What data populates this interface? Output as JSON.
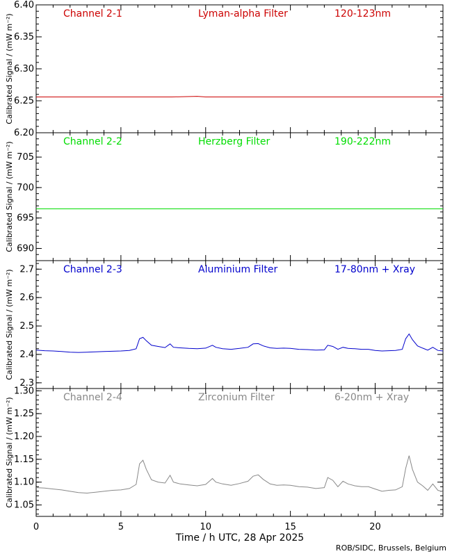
{
  "xlabel": "Time / h UTC, 28 Apr 2025",
  "credit": "ROB/SIDC, Brussels, Belgium",
  "chart_data": [
    {
      "type": "line",
      "color": "#cc0000",
      "title_left": "Channel 2-1",
      "title_mid": "Lyman-alpha Filter",
      "title_right": "120-123nm",
      "ylabel": "Calibrated Signal / (mW m⁻²)",
      "ylim": [
        6.2,
        6.4
      ],
      "yticks": [
        "6.20",
        "6.25",
        "6.30",
        "6.35",
        "6.40"
      ],
      "yticks_v": [
        6.2,
        6.25,
        6.3,
        6.35,
        6.4
      ],
      "xlim": [
        0,
        24
      ],
      "x": [
        0,
        2,
        4,
        6,
        8,
        9.5,
        10,
        12,
        14,
        16,
        18,
        20,
        22,
        24
      ],
      "values": [
        6.256,
        6.256,
        6.256,
        6.256,
        6.256,
        6.257,
        6.256,
        6.256,
        6.256,
        6.256,
        6.256,
        6.256,
        6.256,
        6.256
      ]
    },
    {
      "type": "line",
      "color": "#00dd00",
      "title_left": "Channel 2-2",
      "title_mid": "Herzberg Filter",
      "title_right": "190-222nm",
      "ylabel": "Calibrated Signal / (mW m⁻²)",
      "ylim": [
        688,
        709
      ],
      "yticks": [
        "690",
        "695",
        "700",
        "705"
      ],
      "yticks_v": [
        690,
        695,
        700,
        705
      ],
      "xlim": [
        0,
        24
      ],
      "x": [
        0,
        4,
        8,
        12,
        16,
        20,
        24
      ],
      "values": [
        696.5,
        696.5,
        696.5,
        696.5,
        696.5,
        696.5,
        696.5
      ]
    },
    {
      "type": "line",
      "color": "#0000cc",
      "title_left": "Channel 2-3",
      "title_mid": "Aluminium Filter",
      "title_right": "17-80nm + Xray",
      "ylabel": "Calibrated Signal / (mW m⁻²)",
      "ylim": [
        2.28,
        2.73
      ],
      "yticks": [
        "2.3",
        "2.4",
        "2.5",
        "2.6",
        "2.7"
      ],
      "yticks_v": [
        2.3,
        2.4,
        2.5,
        2.6,
        2.7
      ],
      "xlim": [
        0,
        24
      ],
      "x": [
        0,
        0.5,
        1,
        1.5,
        2,
        2.5,
        3,
        3.5,
        4,
        4.5,
        5,
        5.5,
        5.9,
        6.1,
        6.3,
        6.5,
        6.8,
        7.2,
        7.6,
        7.9,
        8.1,
        8.5,
        9,
        9.5,
        10,
        10.4,
        10.6,
        11,
        11.5,
        12,
        12.5,
        12.8,
        13.1,
        13.4,
        13.8,
        14.2,
        14.6,
        15,
        15.5,
        16,
        16.5,
        17,
        17.2,
        17.5,
        17.8,
        18.1,
        18.4,
        18.8,
        19.2,
        19.6,
        20,
        20.4,
        20.8,
        21.2,
        21.6,
        21.8,
        22,
        22.2,
        22.5,
        22.8,
        23.1,
        23.4,
        23.7,
        24
      ],
      "values": [
        2.415,
        2.413,
        2.412,
        2.41,
        2.408,
        2.407,
        2.408,
        2.409,
        2.41,
        2.411,
        2.412,
        2.414,
        2.42,
        2.455,
        2.46,
        2.448,
        2.432,
        2.428,
        2.424,
        2.437,
        2.425,
        2.423,
        2.421,
        2.42,
        2.422,
        2.432,
        2.425,
        2.42,
        2.418,
        2.421,
        2.425,
        2.437,
        2.438,
        2.43,
        2.423,
        2.421,
        2.422,
        2.421,
        2.418,
        2.417,
        2.415,
        2.416,
        2.432,
        2.428,
        2.418,
        2.425,
        2.421,
        2.42,
        2.418,
        2.418,
        2.414,
        2.412,
        2.413,
        2.414,
        2.418,
        2.455,
        2.472,
        2.452,
        2.43,
        2.422,
        2.415,
        2.425,
        2.414,
        2.412
      ]
    },
    {
      "type": "line",
      "color": "#888888",
      "title_left": "Channel 2-4",
      "title_mid": "Zirconium Filter",
      "title_right": "6-20nm + Xray",
      "ylabel": "Calibrated Signal / (mW m⁻²)",
      "ylim": [
        1.025,
        1.305
      ],
      "yticks": [
        "1.05",
        "1.10",
        "1.15",
        "1.20",
        "1.25",
        "1.30"
      ],
      "yticks_v": [
        1.05,
        1.1,
        1.15,
        1.2,
        1.25,
        1.3
      ],
      "xlim": [
        0,
        24
      ],
      "x": [
        0,
        0.5,
        1,
        1.5,
        2,
        2.5,
        3,
        3.5,
        4,
        4.5,
        5,
        5.5,
        5.9,
        6.1,
        6.3,
        6.5,
        6.8,
        7.2,
        7.6,
        7.9,
        8.1,
        8.5,
        9,
        9.5,
        10,
        10.4,
        10.6,
        11,
        11.5,
        12,
        12.5,
        12.8,
        13.1,
        13.4,
        13.8,
        14.2,
        14.6,
        15,
        15.5,
        16,
        16.5,
        17,
        17.2,
        17.5,
        17.8,
        18.1,
        18.4,
        18.8,
        19.2,
        19.6,
        20,
        20.4,
        20.8,
        21.2,
        21.6,
        21.8,
        22,
        22.2,
        22.5,
        22.8,
        23.1,
        23.4,
        23.7,
        24
      ],
      "values": [
        1.088,
        1.087,
        1.085,
        1.083,
        1.08,
        1.077,
        1.076,
        1.078,
        1.08,
        1.082,
        1.083,
        1.086,
        1.095,
        1.14,
        1.148,
        1.128,
        1.105,
        1.1,
        1.098,
        1.115,
        1.1,
        1.096,
        1.094,
        1.092,
        1.095,
        1.108,
        1.1,
        1.096,
        1.093,
        1.097,
        1.102,
        1.113,
        1.116,
        1.106,
        1.096,
        1.093,
        1.094,
        1.093,
        1.09,
        1.089,
        1.086,
        1.088,
        1.11,
        1.104,
        1.09,
        1.102,
        1.096,
        1.092,
        1.09,
        1.09,
        1.085,
        1.08,
        1.082,
        1.083,
        1.09,
        1.13,
        1.158,
        1.128,
        1.1,
        1.092,
        1.082,
        1.096,
        1.082,
        1.079
      ]
    }
  ],
  "xticks": [
    "0",
    "5",
    "10",
    "15",
    "20"
  ],
  "xticks_v": [
    0,
    5,
    10,
    15,
    20
  ]
}
